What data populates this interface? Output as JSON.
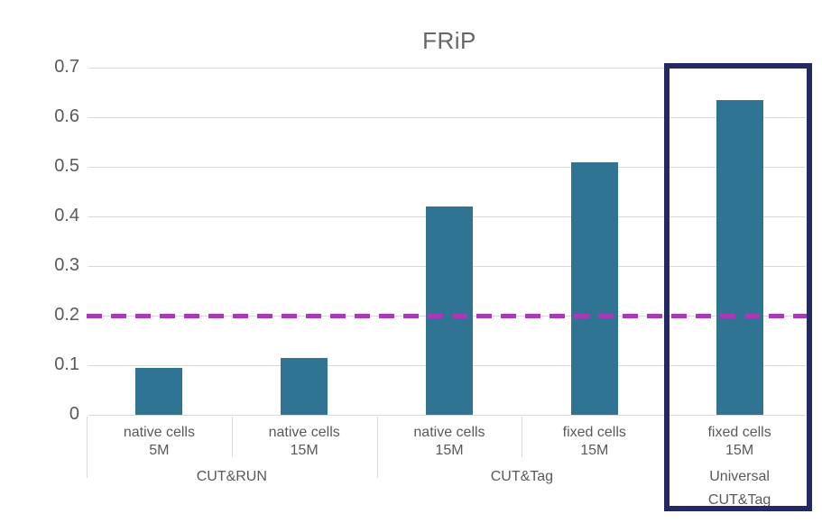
{
  "chart_data": {
    "type": "bar",
    "title": "FRiP",
    "categories": [
      {
        "line1": "native cells",
        "line2": "5M"
      },
      {
        "line1": "native cells",
        "line2": "15M"
      },
      {
        "line1": "native cells",
        "line2": "15M"
      },
      {
        "line1": "fixed cells",
        "line2": "15M"
      },
      {
        "line1": "fixed cells",
        "line2": "15M"
      }
    ],
    "values": [
      0.095,
      0.115,
      0.42,
      0.51,
      0.635
    ],
    "groups": [
      {
        "label_lines": [
          "CUT&RUN"
        ],
        "start": 0,
        "end": 1,
        "highlighted": false
      },
      {
        "label_lines": [
          "CUT&Tag"
        ],
        "start": 2,
        "end": 3,
        "highlighted": false
      },
      {
        "label_lines": [
          "Universal",
          "CUT&Tag"
        ],
        "start": 4,
        "end": 4,
        "highlighted": true
      }
    ],
    "y_ticks": [
      {
        "value": 0.0,
        "label": "0"
      },
      {
        "value": 0.1,
        "label": "0.1"
      },
      {
        "value": 0.2,
        "label": "0.2"
      },
      {
        "value": 0.3,
        "label": "0.3"
      },
      {
        "value": 0.4,
        "label": "0.4"
      },
      {
        "value": 0.5,
        "label": "0.5"
      },
      {
        "value": 0.6,
        "label": "0.6"
      },
      {
        "value": 0.7,
        "label": "0.7"
      }
    ],
    "ylim": [
      0,
      0.7
    ],
    "grid": true,
    "legend": "none",
    "threshold_line": {
      "value": 0.2,
      "style": "dashed",
      "color": "#a83ab8"
    },
    "bar_color": "#2f7492",
    "highlight_box_color": "#252963",
    "gridline_color": "#d9d9d9",
    "text_color": "#595959"
  }
}
